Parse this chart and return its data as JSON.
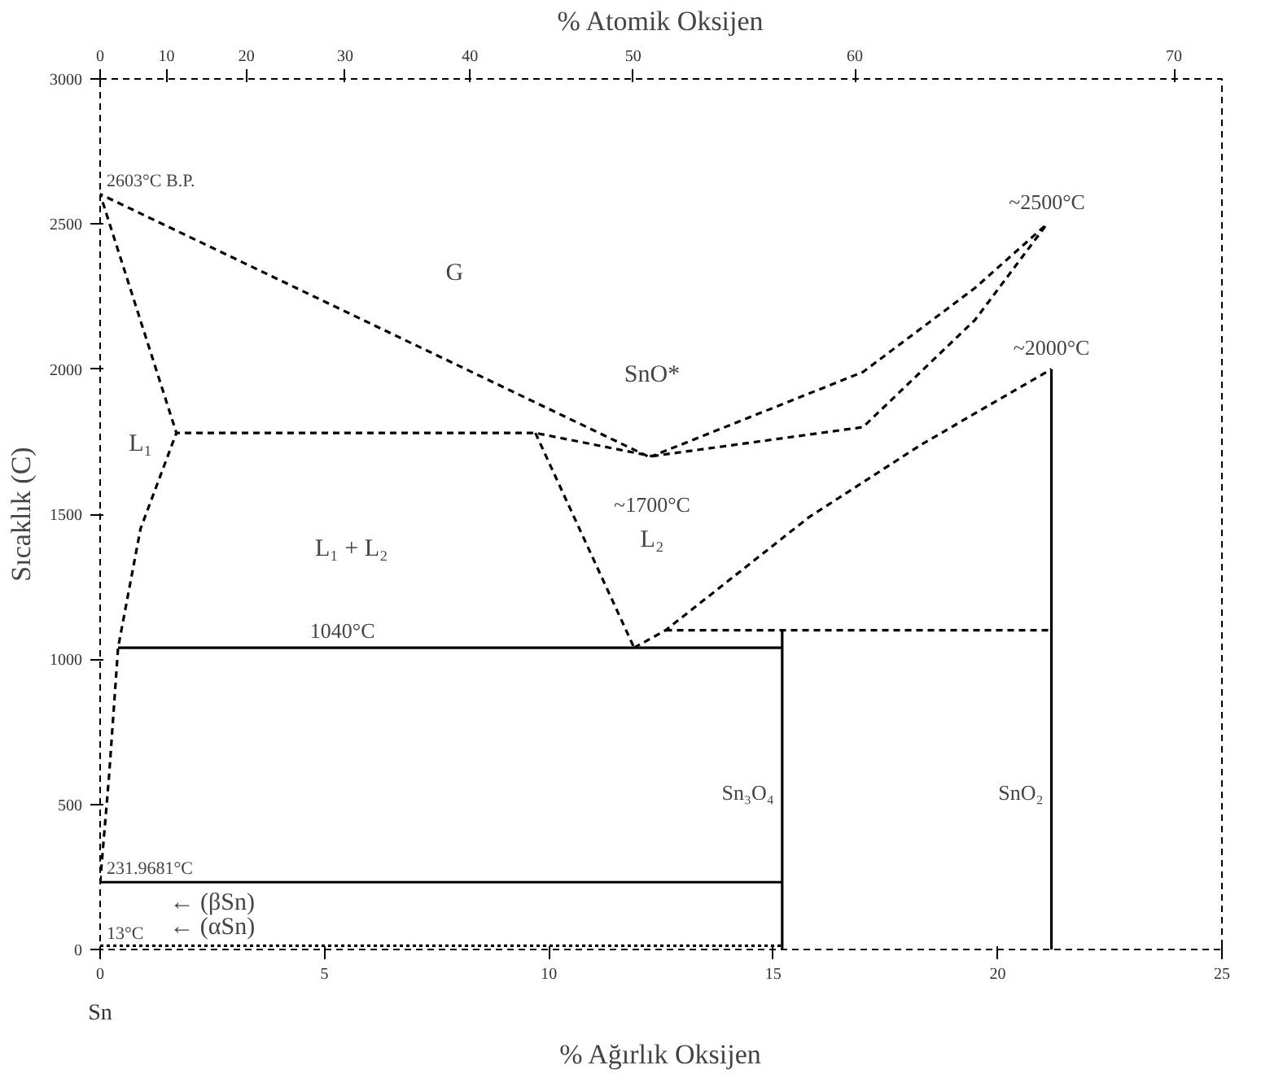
{
  "chart_data": {
    "type": "line",
    "xlabel": "% Ağırlık Oksijen",
    "ylabel": "Sıcaklık (C)",
    "x2label": "% Atomik Oksijen",
    "xlim": [
      0,
      25
    ],
    "ylim": [
      0,
      3000
    ],
    "xticks": [
      0,
      5,
      10,
      15,
      20,
      25
    ],
    "yticks": [
      0,
      500,
      1000,
      1500,
      2000,
      2500,
      3000
    ],
    "grid": false,
    "marker": "none",
    "series": [
      {
        "color": "#000000",
        "line_style": "dashed",
        "x": [
          12.2,
          0,
          1.7,
          9.7,
          12.3,
          17.0,
          19.5,
          21.1
        ],
        "values": [
          1700,
          2603,
          1780,
          1780,
          1700,
          1990,
          2280,
          2500
        ]
      },
      {
        "color": "#000000",
        "line_style": "dashed",
        "x": [
          0,
          0.2,
          0.4,
          0.9,
          1.7
        ],
        "values": [
          232,
          600,
          1040,
          1450,
          1780
        ]
      },
      {
        "color": "#000000",
        "line_style": "dashed",
        "x": [
          9.7,
          11.9
        ],
        "values": [
          1780,
          1040
        ]
      },
      {
        "color": "#000000",
        "line_style": "dashed",
        "x": [
          12.3,
          17.0,
          19.5,
          21.1
        ],
        "values": [
          1700,
          1800,
          2170,
          2500
        ]
      },
      {
        "color": "#000000",
        "line_style": "dashed",
        "x": [
          11.9,
          12.6,
          15.8,
          18.3,
          21.2
        ],
        "values": [
          1040,
          1100,
          1490,
          1740,
          2000
        ]
      },
      {
        "color": "#000000",
        "line_style": "dashed",
        "x": [
          12.6,
          21.2
        ],
        "values": [
          1100,
          1100
        ]
      },
      {
        "color": "#000000",
        "line_style": "solid",
        "x": [
          0.4,
          15.2
        ],
        "values": [
          1040,
          1040
        ]
      },
      {
        "color": "#000000",
        "line_style": "solid",
        "x": [
          15.2,
          15.2
        ],
        "values": [
          0,
          1100
        ]
      },
      {
        "color": "#000000",
        "line_style": "solid",
        "x": [
          21.2,
          21.2
        ],
        "values": [
          0,
          2000
        ]
      },
      {
        "color": "#000000",
        "line_style": "solid",
        "x": [
          0,
          15.2
        ],
        "values": [
          232,
          232
        ]
      },
      {
        "color": "#000000",
        "line_style": "dotted",
        "x": [
          0,
          15.2
        ],
        "values": [
          13,
          13
        ]
      }
    ],
    "annotations": [
      {
        "text": "~1700°C",
        "x": 12.3,
        "y": 1700
      },
      {
        "text": "~2500°C",
        "x": 21.1,
        "y": 2500
      },
      {
        "text": "~2000°C",
        "x": 21.2,
        "y": 2000
      },
      {
        "text": "1040°C",
        "x": 5.4,
        "y": 1040
      },
      {
        "text": "Sn₃O₄",
        "x": 15.2,
        "y": 540
      },
      {
        "text": "SnO₂",
        "x": 21.2,
        "y": 540
      },
      {
        "text": "2603°C B.P.",
        "x": 0,
        "y": 2603
      },
      {
        "text": "231.9681°C",
        "x": 0,
        "y": 232
      },
      {
        "text": "13°C",
        "x": 0,
        "y": 13
      },
      "0",
      "10",
      "20",
      "30",
      "40",
      "50",
      "60",
      "70",
      "Sn",
      "SnO*",
      "G",
      "L₁",
      "L₁ + L₂",
      "L₂",
      "← (βSn)",
      "← (αSn)"
    ]
  }
}
